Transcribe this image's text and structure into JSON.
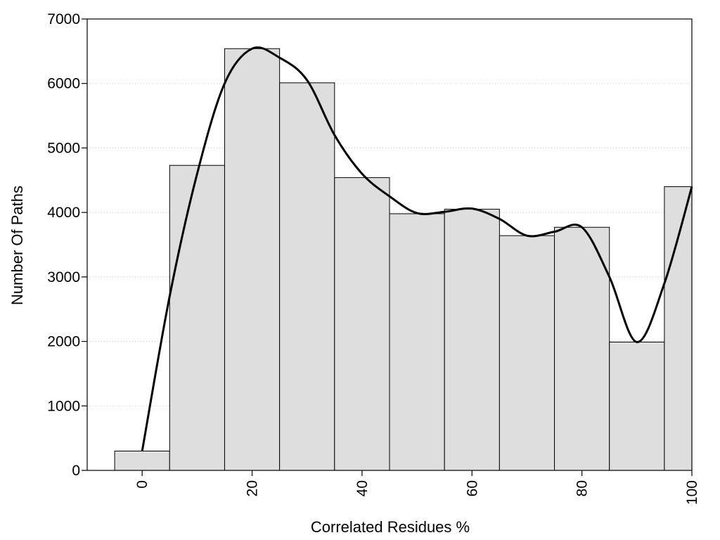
{
  "chart_data": {
    "type": "bar",
    "title": "",
    "xlabel": "Correlated Residues %",
    "ylabel": "Number Of Paths",
    "x": [
      0,
      10,
      20,
      30,
      40,
      50,
      60,
      70,
      80,
      90,
      100
    ],
    "values": [
      300,
      4730,
      6540,
      6010,
      4540,
      3980,
      4050,
      3640,
      3770,
      1990,
      4400
    ],
    "bar_width": 10,
    "xlim": [
      -10,
      100
    ],
    "ylim": [
      0,
      7000
    ],
    "xticks": [
      0,
      20,
      40,
      60,
      80,
      100
    ],
    "yticks": [
      0,
      1000,
      2000,
      3000,
      4000,
      5000,
      6000,
      7000
    ],
    "xtick_labels": [
      "0",
      "20",
      "40",
      "60",
      "80",
      "100"
    ],
    "ytick_labels": [
      "0",
      "1000",
      "2000",
      "3000",
      "4000",
      "5000",
      "6000",
      "7000"
    ],
    "grid": "horizontal dotted",
    "bar_color": "#dedede",
    "curve": {
      "type": "smooth line",
      "color": "#000000",
      "points": [
        [
          0,
          300
        ],
        [
          5,
          2700
        ],
        [
          10,
          4600
        ],
        [
          15,
          6000
        ],
        [
          20,
          6540
        ],
        [
          25,
          6400
        ],
        [
          30,
          6050
        ],
        [
          35,
          5200
        ],
        [
          40,
          4600
        ],
        [
          45,
          4250
        ],
        [
          50,
          3990
        ],
        [
          55,
          4010
        ],
        [
          60,
          4060
        ],
        [
          65,
          3900
        ],
        [
          70,
          3640
        ],
        [
          75,
          3700
        ],
        [
          80,
          3770
        ],
        [
          85,
          3000
        ],
        [
          90,
          1990
        ],
        [
          95,
          2900
        ],
        [
          100,
          4400
        ]
      ]
    }
  }
}
